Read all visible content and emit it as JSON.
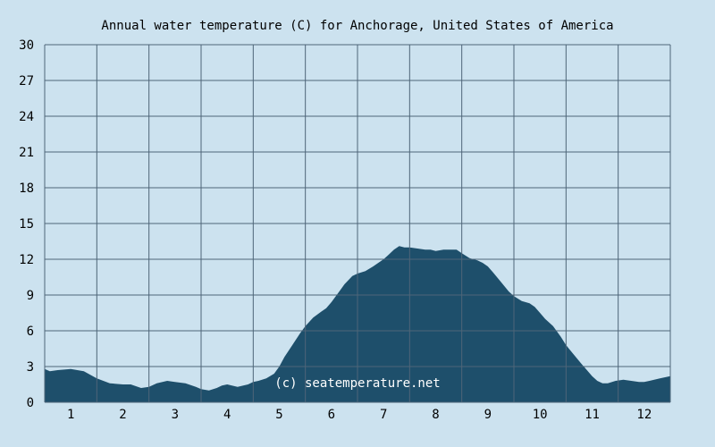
{
  "chart_data": {
    "type": "area",
    "title": "Annual water temperature (C) for Anchorage, United States of America",
    "xlabel": "",
    "ylabel": "",
    "x_tick_labels": [
      "1",
      "2",
      "3",
      "4",
      "5",
      "6",
      "7",
      "8",
      "9",
      "10",
      "11",
      "12"
    ],
    "y_ticks": [
      0,
      3,
      6,
      9,
      12,
      15,
      18,
      21,
      24,
      27,
      30
    ],
    "ylim": [
      0,
      30
    ],
    "xlim": [
      0.5,
      12.5
    ],
    "grid": true,
    "x": [
      0.5,
      0.6,
      0.75,
      1.0,
      1.25,
      1.5,
      1.75,
      2.0,
      2.15,
      2.35,
      2.5,
      2.65,
      2.85,
      3.0,
      3.2,
      3.4,
      3.5,
      3.65,
      3.8,
      3.9,
      4.0,
      4.2,
      4.4,
      4.5,
      4.6,
      4.75,
      4.9,
      5.0,
      5.1,
      5.25,
      5.4,
      5.5,
      5.65,
      5.8,
      5.9,
      6.0,
      6.1,
      6.25,
      6.4,
      6.5,
      6.65,
      6.8,
      6.9,
      7.0,
      7.1,
      7.2,
      7.3,
      7.4,
      7.5,
      7.65,
      7.8,
      7.9,
      8.0,
      8.15,
      8.3,
      8.4,
      8.5,
      8.65,
      8.8,
      8.9,
      9.0,
      9.1,
      9.25,
      9.4,
      9.5,
      9.65,
      9.8,
      9.9,
      10.0,
      10.1,
      10.25,
      10.4,
      10.5,
      10.65,
      10.8,
      10.9,
      11.0,
      11.1,
      11.2,
      11.3,
      11.45,
      11.6,
      11.75,
      11.9,
      12.0,
      12.1,
      12.3,
      12.5
    ],
    "series": [
      {
        "values": [
          2.8,
          2.6,
          2.7,
          2.8,
          2.6,
          2.0,
          1.6,
          1.5,
          1.5,
          1.2,
          1.3,
          1.6,
          1.8,
          1.7,
          1.6,
          1.3,
          1.1,
          1.0,
          1.2,
          1.4,
          1.5,
          1.3,
          1.5,
          1.7,
          1.8,
          2.0,
          2.4,
          3.0,
          3.8,
          4.8,
          5.8,
          6.4,
          7.1,
          7.6,
          7.9,
          8.4,
          9.0,
          9.9,
          10.6,
          10.8,
          11.0,
          11.4,
          11.7,
          12.0,
          12.4,
          12.8,
          13.1,
          13.0,
          13.0,
          12.9,
          12.8,
          12.8,
          12.7,
          12.8,
          12.8,
          12.8,
          12.5,
          12.1,
          11.9,
          11.7,
          11.4,
          10.9,
          10.1,
          9.3,
          8.9,
          8.5,
          8.3,
          8.0,
          7.5,
          7.0,
          6.4,
          5.5,
          4.8,
          4.0,
          3.2,
          2.7,
          2.2,
          1.8,
          1.6,
          1.6,
          1.8,
          1.9,
          1.8,
          1.7,
          1.7,
          1.8,
          2.0,
          2.2
        ],
        "color": "#1e4f6b"
      }
    ],
    "watermark": "(c) seatemperature.net",
    "colors": {
      "background": "#cce2ef",
      "fill": "#1e4f6b",
      "grid": "#4e6578"
    }
  }
}
